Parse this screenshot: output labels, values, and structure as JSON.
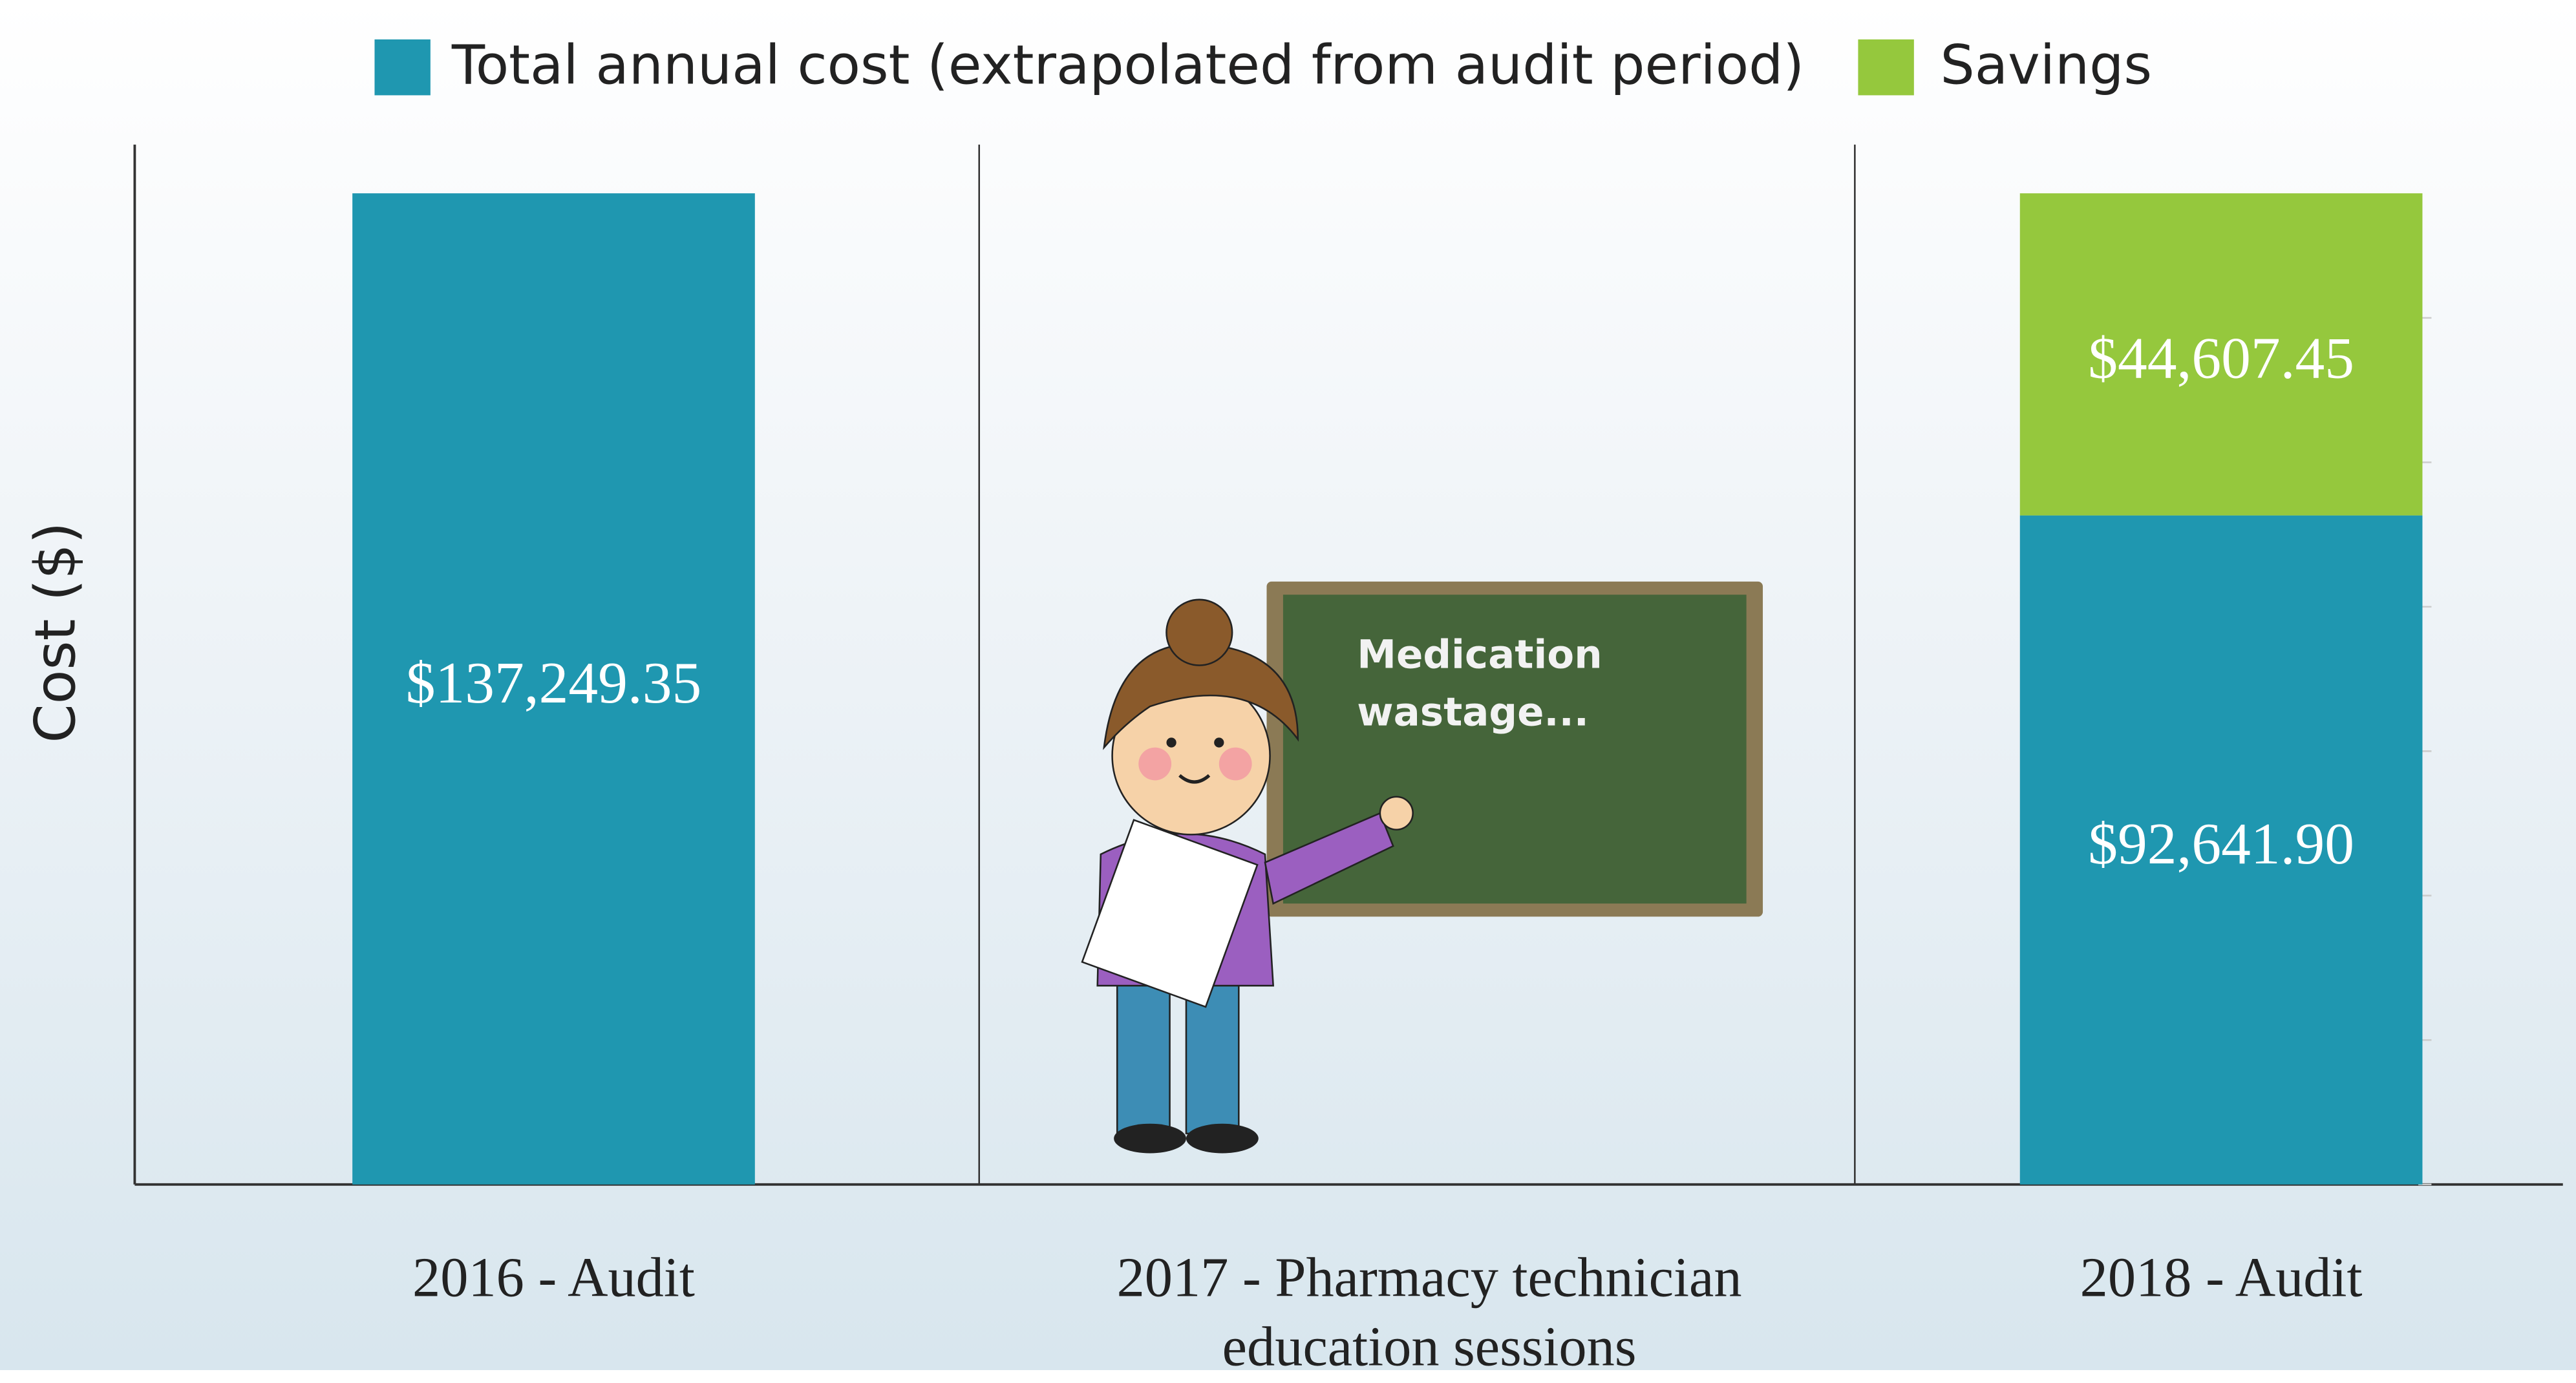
{
  "chart_data": {
    "type": "bar",
    "stacked": true,
    "y_label": "Cost ($)",
    "categories": [
      "2016 - Audit",
      "2017 - Pharmacy technician education sessions",
      "2018 - Audit"
    ],
    "series": [
      {
        "name": "Total annual cost (extrapolated from audit period)",
        "color": "#1f97b0",
        "values": [
          137249.35,
          null,
          92641.9
        ],
        "value_labels": [
          "$137,249.35",
          null,
          "$92,641.90"
        ]
      },
      {
        "name": "Savings",
        "color": "#95c83d",
        "values": [
          null,
          null,
          44607.45
        ],
        "value_labels": [
          null,
          null,
          "$44,607.45"
        ]
      }
    ],
    "annotations": [
      "Medication",
      "wastage..."
    ],
    "ylim": [
      0,
      144000
    ],
    "yticks": [
      0,
      20000,
      40000,
      60000,
      80000,
      100000,
      120000
    ],
    "legend": "top"
  }
}
